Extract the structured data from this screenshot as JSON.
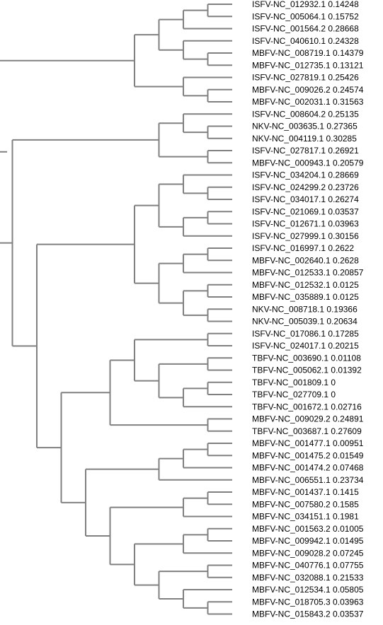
{
  "tree": {
    "ch": [
      {
        "ch": [
          {
            "ch": [
              {
                "ch": [
                  {
                    "ch": [
                      {
                        "l": "ISFV-NC_012932.1 0.14248"
                      },
                      {
                        "l": "ISFV-NC_005064.1 0.15752"
                      }
                    ]
                  },
                  {
                    "l": "ISFV-NC_001564.2 0.28668"
                  }
                ]
              },
              {
                "ch": [
                  {
                    "l": "ISFV-NC_040610.1 0.24328"
                  },
                  {
                    "ch": [
                      {
                        "l": "MBFV-NC_008719.1 0.14379"
                      },
                      {
                        "l": "MBFV-NC_012735.1 0.13121"
                      }
                    ]
                  }
                ]
              }
            ]
          },
          {
            "ch": [
              {
                "l": "ISFV-NC_027819.1 0.25426"
              },
              {
                "ch": [
                  {
                    "l": "MBFV-NC_009026.2 0.24574"
                  },
                  {
                    "l": "MBFV-NC_002031.1 0.31563"
                  }
                ]
              }
            ]
          }
        ]
      },
      {
        "ch": [
          {
            "ch": [
              {
                "ch": [
                  {
                    "l": "ISFV-NC_008604.2 0.25135"
                  },
                  {
                    "ch": [
                      {
                        "l": "NKV-NC_003635.1 0.27365"
                      },
                      {
                        "l": "NKV-NC_004119.1 0.30285"
                      }
                    ]
                  }
                ]
              },
              {
                "ch": [
                  {
                    "l": "ISFV-NC_027817.1 0.26921"
                  },
                  {
                    "l": "MBFV-NC_000943.1 0.20579"
                  }
                ]
              }
            ]
          },
          {
            "ch": [
              {
                "ch": [
                  {
                    "ch": [
                      {
                        "ch": [
                          {
                            "l": "ISFV-NC_034204.1 0.28669"
                          },
                          {
                            "ch": [
                              {
                                "l": "ISFV-NC_024299.2 0.23726"
                              },
                              {
                                "l": "ISFV-NC_034017.1 0.26274"
                              }
                            ]
                          }
                        ]
                      },
                      {
                        "ch": [
                          {
                            "ch": [
                              {
                                "l": "ISFV-NC_021069.1 0.03537"
                              },
                              {
                                "l": "ISFV-NC_012671.1 0.03963"
                              }
                            ]
                          },
                          {
                            "l": "ISFV-NC_027999.1 0.30156"
                          }
                        ]
                      }
                    ]
                  },
                  {
                    "ch": [
                      {
                        "ch": [
                          {
                            "ch": [
                              {
                                "l": "ISFV-NC_016997.1 0.2622"
                              },
                              {
                                "l": "MBFV-NC_002640.1 0.2628"
                              }
                            ]
                          },
                          {
                            "l": "MBFV-NC_012533.1 0.20857"
                          }
                        ]
                      },
                      {
                        "ch": [
                          {
                            "ch": [
                              {
                                "l": "MBFV-NC_012532.1 0.0125"
                              },
                              {
                                "l": "MBFV-NC_035889.1 0.0125"
                              }
                            ]
                          },
                          {
                            "ch": [
                              {
                                "l": "NKV-NC_008718.1 0.19366"
                              },
                              {
                                "l": "NKV-NC_005039.1 0.20634"
                              }
                            ]
                          }
                        ]
                      }
                    ]
                  }
                ]
              },
              {
                "ch": [
                  {
                    "ch": [
                      {
                        "ch": [
                          {
                            "ch": [
                              {
                                "l": "ISFV-NC_017086.1 0.17285"
                              },
                              {
                                "l": "ISFV-NC_024017.1 0.20215"
                              }
                            ]
                          },
                          {
                            "ch": [
                              {
                                "ch": [
                                  {
                                    "l": "TBFV-NC_003690.1 0.01108"
                                  },
                                  {
                                    "l": "TBFV-NC_005062.1 0.01392"
                                  }
                                ]
                              },
                              {
                                "ch": [
                                  {
                                    "ch": [
                                      {
                                        "l": "TBFV-NC_001809.1 0"
                                      },
                                      {
                                        "l": "TBFV-NC_027709.1 0"
                                      }
                                    ]
                                  },
                                  {
                                    "l": "TBFV-NC_001672.1 0.02716"
                                  }
                                ]
                              }
                            ]
                          }
                        ]
                      },
                      {
                        "ch": [
                          {
                            "l": "MBFV-NC_009029.2 0.24891"
                          },
                          {
                            "l": "TBFV-NC_003687.1 0.27609"
                          }
                        ]
                      }
                    ]
                  },
                  {
                    "ch": [
                      {
                        "ch": [
                          {
                            "ch": [
                              {
                                "ch": [
                                  {
                                    "l": "MBFV-NC_001477.1 0.00951"
                                  },
                                  {
                                    "l": "MBFV-NC_001475.2 0.01549"
                                  }
                                ]
                              },
                              {
                                "l": "MBFV-NC_001474.2 0.07468"
                              }
                            ]
                          },
                          {
                            "l": "MBFV-NC_006551.1 0.23734"
                          }
                        ]
                      },
                      {
                        "ch": [
                          {
                            "ch": [
                              {
                                "ch": [
                                  {
                                    "l": "MBFV-NC_001437.1 0.1415"
                                  },
                                  {
                                    "l": "MBFV-NC_007580.2 0.1585"
                                  }
                                ]
                              },
                              {
                                "l": "MBFV-NC_034151.1 0.1981"
                              }
                            ]
                          },
                          {
                            "ch": [
                              {
                                "ch": [
                                  {
                                    "ch": [
                                      {
                                        "l": "MBFV-NC_001563.2 0.01005"
                                      },
                                      {
                                        "l": "MBFV-NC_009942.1 0.01495"
                                      }
                                    ]
                                  },
                                  {
                                    "l": "MBFV-NC_009028.2 0.07245"
                                  }
                                ]
                              },
                              {
                                "ch": [
                                  {
                                    "ch": [
                                      {
                                        "l": "MBFV-NC_040776.1 0.07755"
                                      },
                                      {
                                        "l": "MBFV-NC_032088.1 0.21533"
                                      }
                                    ]
                                  },
                                  {
                                    "ch": [
                                      {
                                        "l": "MBFV-NC_012534.1 0.05805"
                                      },
                                      {
                                        "ch": [
                                          {
                                            "l": "MBFV-NC_018705.3 0.03963"
                                          },
                                          {
                                            "l": "MBFV-NC_015843.2 0.03537"
                                          }
                                        ]
                                      }
                                    ]
                                  }
                                ]
                              }
                            ]
                          }
                        ]
                      }
                    ]
                  }
                ]
              }
            ]
          }
        ]
      }
    ]
  },
  "colors": {
    "branch": "#808080",
    "label": "#000000",
    "background": "#ffffff"
  }
}
